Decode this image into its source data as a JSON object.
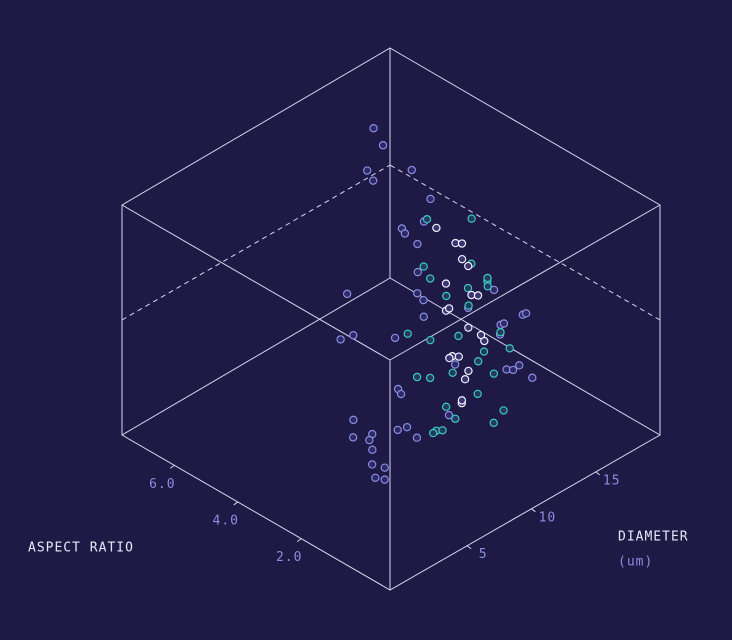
{
  "chart_data": {
    "type": "scatter3d",
    "x_label": "DIAMETER",
    "x_unit": "(um)",
    "y_label": "ASPECT RATIO",
    "xlim": [
      -1,
      20
    ],
    "xticks": [
      5,
      10,
      15
    ],
    "ylim": [
      -0.8,
      7.65
    ],
    "yticks": [
      {
        "value": 2,
        "label": "2.0"
      },
      {
        "value": 4,
        "label": "4.0"
      },
      {
        "value": 6,
        "label": "6.0"
      }
    ],
    "zlim": [
      0,
      1
    ],
    "series": [
      {
        "color": "#8c8ce0",
        "x": [
          6,
          7,
          5.5,
          6.5,
          8,
          7,
          6,
          5,
          9,
          8,
          7.5,
          6,
          10,
          11,
          13,
          14,
          15,
          14,
          13,
          12,
          15,
          16,
          14,
          13,
          12,
          14,
          15,
          10,
          9,
          11,
          13,
          14,
          12,
          8,
          7,
          16,
          15,
          13,
          11,
          10,
          12,
          9,
          8,
          6,
          7
        ],
        "y": [
          2.5,
          3,
          2,
          2.8,
          3.5,
          2.2,
          3.2,
          1.8,
          3,
          2.5,
          3.8,
          2.6,
          3.5,
          3,
          4,
          5.5,
          5,
          5.8,
          4.5,
          4,
          1.5,
          1.8,
          2,
          1.2,
          1,
          1.4,
          2.2,
          2.8,
          2.2,
          3.2,
          3.6,
          6,
          5,
          4.2,
          4,
          2.5,
          1.2,
          0.8,
          1.6,
          1.8,
          3.4,
          1.2,
          2,
          1.5,
          3.6
        ],
        "z": [
          0,
          0.05,
          0.1,
          0.15,
          0.02,
          0.2,
          0.12,
          0.08,
          0.25,
          0.3,
          0.1,
          0.05,
          0.4,
          0.5,
          0.55,
          0.95,
          0.85,
          1,
          0.7,
          0.75,
          0.5,
          0.45,
          0.6,
          0.35,
          0.55,
          0.3,
          0.4,
          0.65,
          0.7,
          0.8,
          0.9,
          0.8,
          0.9,
          0.6,
          0.45,
          0.35,
          0.25,
          0.4,
          0.65,
          0.2,
          0.85,
          0.5,
          0.15,
          0.3,
          0.5
        ]
      },
      {
        "color": "#3cc8c0",
        "x": [
          10,
          11,
          12,
          13,
          14,
          10.5,
          11.5,
          12.5,
          13.5,
          14.5,
          9.5,
          10,
          11,
          12,
          13,
          14,
          9,
          10,
          11,
          12,
          13,
          14,
          10,
          11,
          12,
          13,
          9.5,
          10.5,
          11.5,
          12.5
        ],
        "y": [
          1.2,
          1.5,
          1.4,
          1.8,
          2.2,
          2.8,
          3,
          2.9,
          2.6,
          2,
          1.3,
          3.1,
          1.1,
          3.2,
          1.6,
          2.5,
          2.4,
          1.6,
          2.8,
          1.2,
          2.9,
          1.7,
          2.2,
          1.3,
          2.7,
          1.1,
          1.8,
          2.5,
          3.1,
          2.1
        ],
        "z": [
          0.8,
          0.85,
          0.75,
          0.7,
          0.6,
          0.75,
          0.65,
          0.55,
          0.5,
          0.4,
          0.6,
          0.45,
          0.5,
          0.35,
          0.3,
          0.25,
          0.35,
          0.2,
          0.25,
          0.15,
          0.2,
          0.1,
          0.1,
          0.3,
          0.1,
          0.45,
          0.15,
          0.05,
          0.9,
          0.95
        ]
      },
      {
        "color": "#f2f0ff",
        "x": [
          11,
          12,
          11.5,
          12.5,
          11,
          12,
          13,
          11.5,
          12,
          12.5,
          11,
          12,
          11.5,
          12.5,
          12,
          11,
          11.5,
          10.5,
          11,
          12
        ],
        "y": [
          2.0,
          2.2,
          1.8,
          2.4,
          2.3,
          1.9,
          2.1,
          2.5,
          2.0,
          1.7,
          2.1,
          2.3,
          1.9,
          2.2,
          2.6,
          1.8,
          2.0,
          2.4,
          2.2,
          1.6
        ],
        "z": [
          0.9,
          0.85,
          0.8,
          0.75,
          0.7,
          0.65,
          0.6,
          0.55,
          0.5,
          0.45,
          0.4,
          0.35,
          0.3,
          0.28,
          0.32,
          0.22,
          0.2,
          0.95,
          0.6,
          0.5
        ]
      }
    ]
  }
}
